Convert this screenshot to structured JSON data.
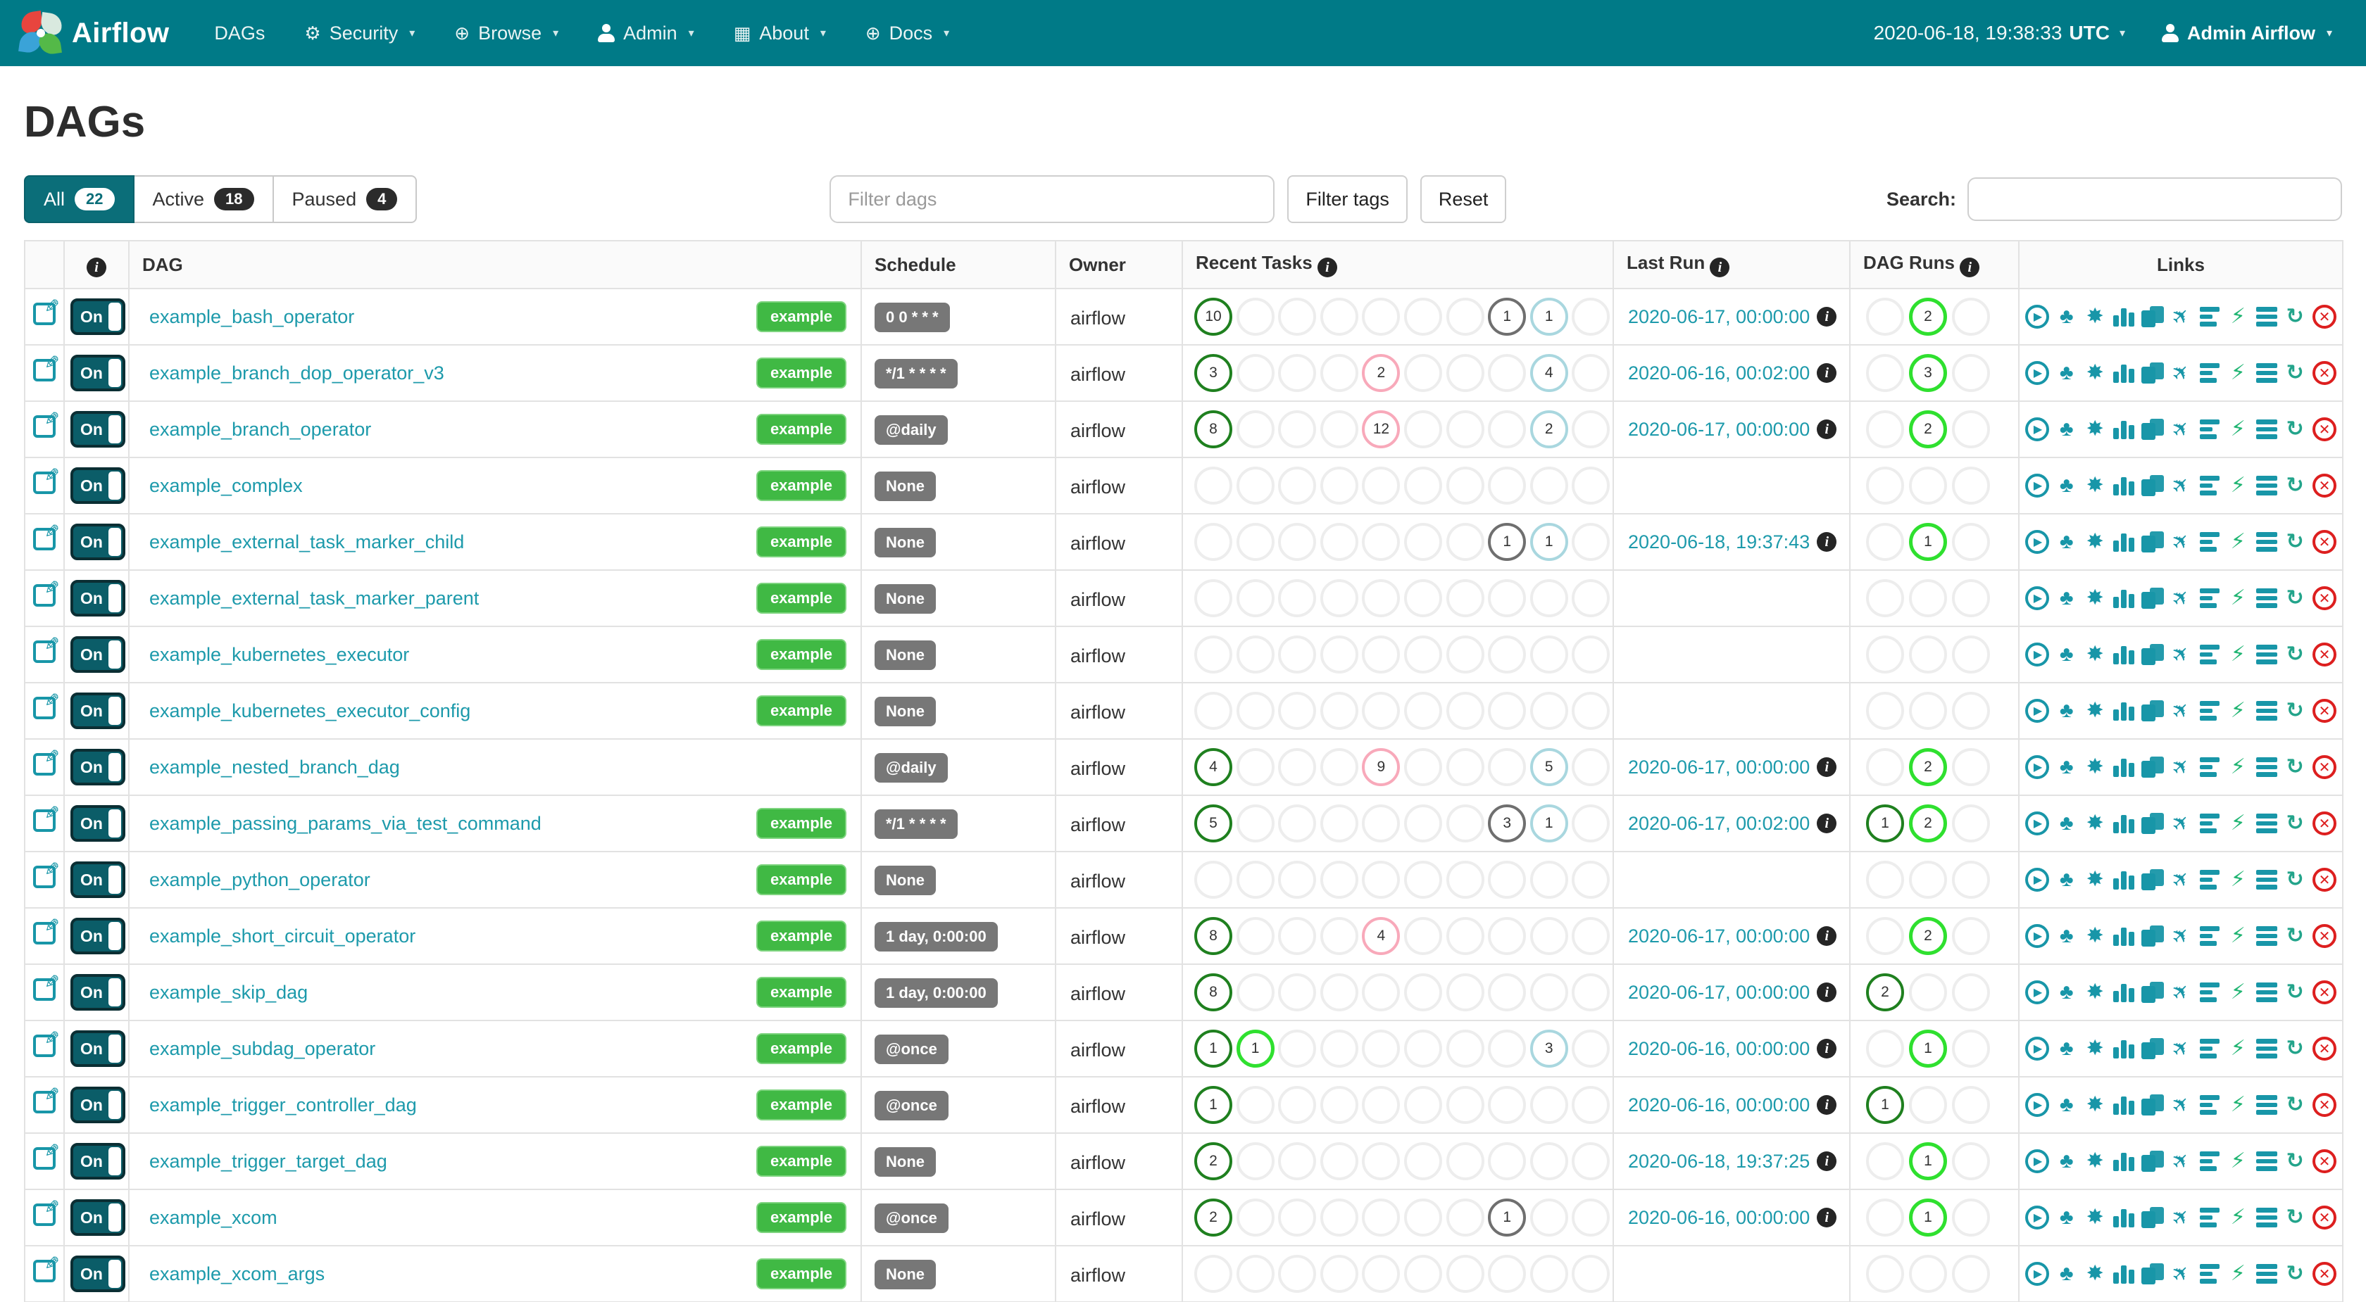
{
  "navbar": {
    "brand": "Airflow",
    "items": [
      {
        "label": "DAGs",
        "icon": null,
        "caret": false
      },
      {
        "label": "Security",
        "icon": "gear-icon",
        "glyph": "⚙",
        "caret": true
      },
      {
        "label": "Browse",
        "icon": "globe-icon",
        "glyph": "⊕",
        "caret": true
      },
      {
        "label": "Admin",
        "icon": "person-icon",
        "glyph": null,
        "caret": true
      },
      {
        "label": "About",
        "icon": "grid-icon",
        "glyph": "▦",
        "caret": true
      },
      {
        "label": "Docs",
        "icon": "globe-icon",
        "glyph": "⊕",
        "caret": true
      }
    ],
    "clock": "2020-06-18, 19:38:33",
    "clock_tz": "UTC",
    "user": "Admin Airflow"
  },
  "page": {
    "title": "DAGs"
  },
  "tabs": [
    {
      "label": "All",
      "count": "22",
      "active": true
    },
    {
      "label": "Active",
      "count": "18",
      "active": false
    },
    {
      "label": "Paused",
      "count": "4",
      "active": false
    }
  ],
  "filters": {
    "dag_placeholder": "Filter dags",
    "tags_button": "Filter tags",
    "reset_button": "Reset",
    "search_label": "Search:"
  },
  "table": {
    "headers": [
      {
        "label": "",
        "info": false,
        "center": false
      },
      {
        "label": "",
        "info": true,
        "center": true
      },
      {
        "label": "DAG",
        "info": false,
        "center": false
      },
      {
        "label": "Schedule",
        "info": false,
        "center": false
      },
      {
        "label": "Owner",
        "info": false,
        "center": false
      },
      {
        "label": "Recent Tasks",
        "info": true,
        "center": false
      },
      {
        "label": "Last Run",
        "info": true,
        "center": false
      },
      {
        "label": "DAG Runs",
        "info": true,
        "center": false
      },
      {
        "label": "Links",
        "info": false,
        "center": true
      }
    ]
  },
  "state_colors": {
    "success": "#1f801f",
    "running": "#2fe02f",
    "skipped": "#f8a9ba",
    "queued": "#6f6f6f",
    "none_status": "#a9d7df",
    "empty": "#ededed"
  },
  "toggle_label": "On",
  "task_slots": 10,
  "run_slots": 3,
  "links_icons": [
    {
      "name": "trigger-dag-icon",
      "kind": "play-circle"
    },
    {
      "name": "tree-view-icon",
      "kind": "glyph",
      "glyph": "♣"
    },
    {
      "name": "graph-view-icon",
      "kind": "glyph",
      "glyph": "✸"
    },
    {
      "name": "task-duration-icon",
      "kind": "vbars"
    },
    {
      "name": "task-tries-icon",
      "kind": "docs"
    },
    {
      "name": "landing-times-icon",
      "kind": "glyph",
      "glyph": "✈",
      "rotate": -45
    },
    {
      "name": "gantt-icon",
      "kind": "hbars-left"
    },
    {
      "name": "code-icon",
      "kind": "glyph",
      "glyph": "⚡",
      "color": "#21b573"
    },
    {
      "name": "logs-icon",
      "kind": "hbars"
    },
    {
      "name": "refresh-icon",
      "kind": "glyph",
      "glyph": "↻",
      "color": "#23a48b",
      "bold": true
    },
    {
      "name": "delete-dag-icon",
      "kind": "x-circle"
    }
  ],
  "rows": [
    {
      "name": "example_bash_operator",
      "tag": "example",
      "schedule": "0 0 * * *",
      "owner": "airflow",
      "tasks": [
        {
          "pos": 0,
          "state": "success",
          "count": "10"
        },
        {
          "pos": 7,
          "state": "queued",
          "count": "1"
        },
        {
          "pos": 8,
          "state": "none_status",
          "count": "1"
        }
      ],
      "last_run": "2020-06-17, 00:00:00",
      "runs": [
        {
          "pos": 1,
          "state": "running",
          "count": "2"
        }
      ]
    },
    {
      "name": "example_branch_dop_operator_v3",
      "tag": "example",
      "schedule": "*/1 * * * *",
      "owner": "airflow",
      "tasks": [
        {
          "pos": 0,
          "state": "success",
          "count": "3"
        },
        {
          "pos": 4,
          "state": "skipped",
          "count": "2"
        },
        {
          "pos": 8,
          "state": "none_status",
          "count": "4"
        }
      ],
      "last_run": "2020-06-16, 00:02:00",
      "runs": [
        {
          "pos": 1,
          "state": "running",
          "count": "3"
        }
      ]
    },
    {
      "name": "example_branch_operator",
      "tag": "example",
      "schedule": "@daily",
      "owner": "airflow",
      "tasks": [
        {
          "pos": 0,
          "state": "success",
          "count": "8"
        },
        {
          "pos": 4,
          "state": "skipped",
          "count": "12"
        },
        {
          "pos": 8,
          "state": "none_status",
          "count": "2"
        }
      ],
      "last_run": "2020-06-17, 00:00:00",
      "runs": [
        {
          "pos": 1,
          "state": "running",
          "count": "2"
        }
      ]
    },
    {
      "name": "example_complex",
      "tag": "example",
      "schedule": "None",
      "owner": "airflow",
      "tasks": [],
      "last_run": null,
      "runs": []
    },
    {
      "name": "example_external_task_marker_child",
      "tag": "example",
      "schedule": "None",
      "owner": "airflow",
      "tasks": [
        {
          "pos": 7,
          "state": "queued",
          "count": "1"
        },
        {
          "pos": 8,
          "state": "none_status",
          "count": "1"
        }
      ],
      "last_run": "2020-06-18, 19:37:43",
      "runs": [
        {
          "pos": 1,
          "state": "running",
          "count": "1"
        }
      ]
    },
    {
      "name": "example_external_task_marker_parent",
      "tag": "example",
      "schedule": "None",
      "owner": "airflow",
      "tasks": [],
      "last_run": null,
      "runs": []
    },
    {
      "name": "example_kubernetes_executor",
      "tag": "example",
      "schedule": "None",
      "owner": "airflow",
      "tasks": [],
      "last_run": null,
      "runs": []
    },
    {
      "name": "example_kubernetes_executor_config",
      "tag": "example",
      "schedule": "None",
      "owner": "airflow",
      "tasks": [],
      "last_run": null,
      "runs": []
    },
    {
      "name": "example_nested_branch_dag",
      "tag": null,
      "schedule": "@daily",
      "owner": "airflow",
      "tasks": [
        {
          "pos": 0,
          "state": "success",
          "count": "4"
        },
        {
          "pos": 4,
          "state": "skipped",
          "count": "9"
        },
        {
          "pos": 8,
          "state": "none_status",
          "count": "5"
        }
      ],
      "last_run": "2020-06-17, 00:00:00",
      "runs": [
        {
          "pos": 1,
          "state": "running",
          "count": "2"
        }
      ]
    },
    {
      "name": "example_passing_params_via_test_command",
      "tag": "example",
      "schedule": "*/1 * * * *",
      "owner": "airflow",
      "tasks": [
        {
          "pos": 0,
          "state": "success",
          "count": "5"
        },
        {
          "pos": 7,
          "state": "queued",
          "count": "3"
        },
        {
          "pos": 8,
          "state": "none_status",
          "count": "1"
        }
      ],
      "last_run": "2020-06-17, 00:02:00",
      "runs": [
        {
          "pos": 0,
          "state": "success",
          "count": "1"
        },
        {
          "pos": 1,
          "state": "running",
          "count": "2"
        }
      ]
    },
    {
      "name": "example_python_operator",
      "tag": "example",
      "schedule": "None",
      "owner": "airflow",
      "tasks": [],
      "last_run": null,
      "runs": []
    },
    {
      "name": "example_short_circuit_operator",
      "tag": "example",
      "schedule": "1 day, 0:00:00",
      "owner": "airflow",
      "tasks": [
        {
          "pos": 0,
          "state": "success",
          "count": "8"
        },
        {
          "pos": 4,
          "state": "skipped",
          "count": "4"
        }
      ],
      "last_run": "2020-06-17, 00:00:00",
      "runs": [
        {
          "pos": 1,
          "state": "running",
          "count": "2"
        }
      ]
    },
    {
      "name": "example_skip_dag",
      "tag": "example",
      "schedule": "1 day, 0:00:00",
      "owner": "airflow",
      "tasks": [
        {
          "pos": 0,
          "state": "success",
          "count": "8"
        }
      ],
      "last_run": "2020-06-17, 00:00:00",
      "runs": [
        {
          "pos": 0,
          "state": "success",
          "count": "2"
        }
      ]
    },
    {
      "name": "example_subdag_operator",
      "tag": "example",
      "schedule": "@once",
      "owner": "airflow",
      "tasks": [
        {
          "pos": 0,
          "state": "success",
          "count": "1"
        },
        {
          "pos": 1,
          "state": "running",
          "count": "1"
        },
        {
          "pos": 8,
          "state": "none_status",
          "count": "3"
        }
      ],
      "last_run": "2020-06-16, 00:00:00",
      "runs": [
        {
          "pos": 1,
          "state": "running",
          "count": "1"
        }
      ]
    },
    {
      "name": "example_trigger_controller_dag",
      "tag": "example",
      "schedule": "@once",
      "owner": "airflow",
      "tasks": [
        {
          "pos": 0,
          "state": "success",
          "count": "1"
        }
      ],
      "last_run": "2020-06-16, 00:00:00",
      "runs": [
        {
          "pos": 0,
          "state": "success",
          "count": "1"
        }
      ]
    },
    {
      "name": "example_trigger_target_dag",
      "tag": "example",
      "schedule": "None",
      "owner": "airflow",
      "tasks": [
        {
          "pos": 0,
          "state": "success",
          "count": "2"
        }
      ],
      "last_run": "2020-06-18, 19:37:25",
      "runs": [
        {
          "pos": 1,
          "state": "running",
          "count": "1"
        }
      ]
    },
    {
      "name": "example_xcom",
      "tag": "example",
      "schedule": "@once",
      "owner": "airflow",
      "tasks": [
        {
          "pos": 0,
          "state": "success",
          "count": "2"
        },
        {
          "pos": 7,
          "state": "queued",
          "count": "1"
        }
      ],
      "last_run": "2020-06-16, 00:00:00",
      "runs": [
        {
          "pos": 1,
          "state": "running",
          "count": "1"
        }
      ]
    },
    {
      "name": "example_xcom_args",
      "tag": "example",
      "schedule": "None",
      "owner": "airflow",
      "tasks": [],
      "last_run": null,
      "runs": []
    }
  ]
}
